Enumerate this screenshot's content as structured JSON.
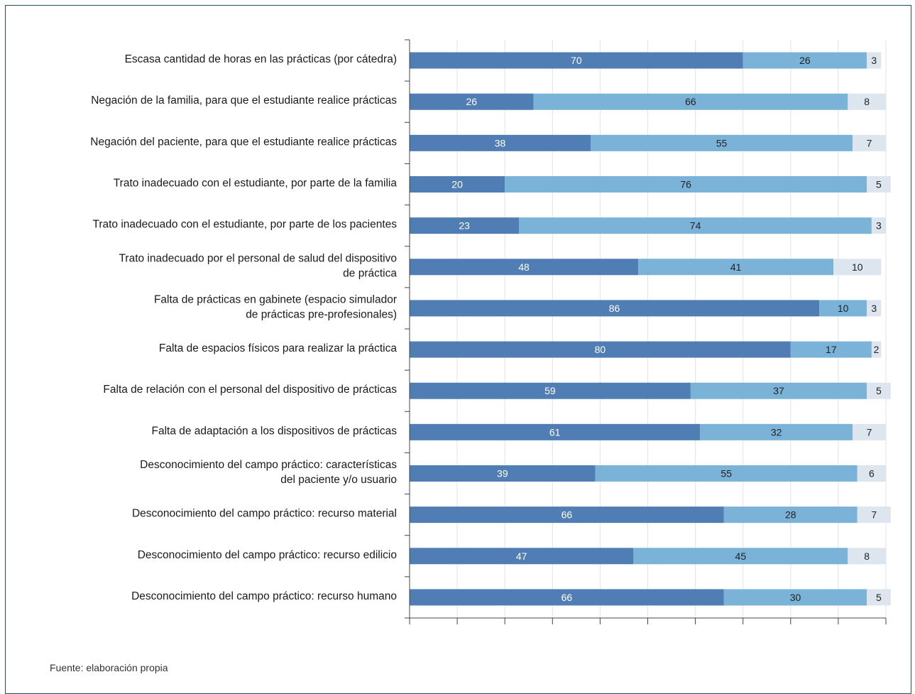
{
  "source_note": "Fuente: elaboración propia",
  "colors": {
    "series1": "#4f7db4",
    "series2": "#7bb3d8",
    "series3": "#dde5ef",
    "axis": "#444444",
    "label_dark": "#222222",
    "label_light": "#ffffff"
  },
  "chart_data": {
    "type": "bar",
    "orientation": "horizontal",
    "stacked": true,
    "xlim": [
      0,
      100
    ],
    "categories": [
      [
        "Escasa cantidad de horas en las prácticas (por cátedra)"
      ],
      [
        "Negación de la familia, para que el estudiante realice prácticas"
      ],
      [
        "Negación del paciente, para que el estudiante realice prácticas"
      ],
      [
        "Trato inadecuado con el estudiante, por parte de la familia"
      ],
      [
        "Trato inadecuado con el estudiante, por parte de los pacientes"
      ],
      [
        "Trato inadecuado por el personal de salud del dispositivo",
        "de práctica"
      ],
      [
        "Falta de prácticas en gabinete (espacio simulador",
        "de prácticas pre-profesionales)"
      ],
      [
        "Falta de espacios físicos para realizar la práctica"
      ],
      [
        "Falta de relación con el personal del dispositivo de prácticas"
      ],
      [
        "Falta de adaptación a los dispositivos de prácticas"
      ],
      [
        "Desconocimiento del campo práctico: características",
        "del paciente y/o usuario"
      ],
      [
        "Desconocimiento del campo práctico: recurso material"
      ],
      [
        "Desconocimiento del campo práctico: recurso edilicio"
      ],
      [
        "Desconocimiento del campo práctico: recurso humano"
      ]
    ],
    "series": [
      {
        "values": [
          70,
          26,
          38,
          20,
          23,
          48,
          86,
          80,
          59,
          61,
          39,
          66,
          47,
          66
        ]
      },
      {
        "values": [
          26,
          66,
          55,
          76,
          74,
          41,
          10,
          17,
          37,
          32,
          55,
          28,
          45,
          30
        ]
      },
      {
        "values": [
          3,
          8,
          7,
          5,
          3,
          10,
          3,
          2,
          5,
          7,
          6,
          7,
          8,
          5
        ]
      }
    ]
  }
}
